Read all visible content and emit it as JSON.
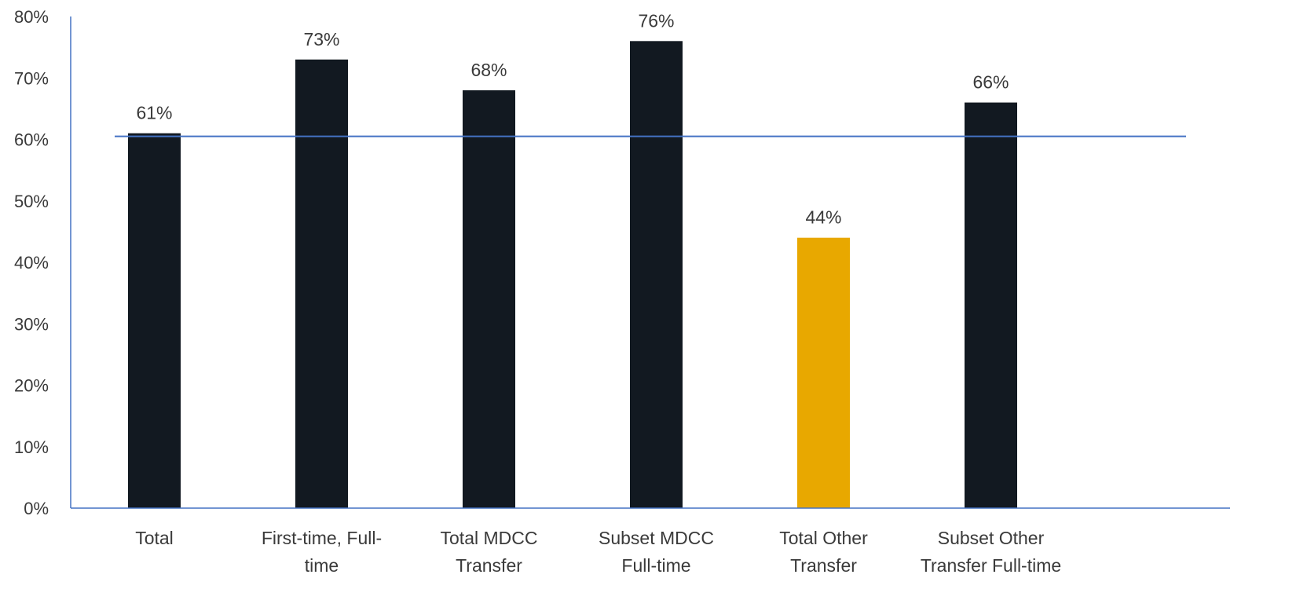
{
  "chart_data": {
    "type": "bar",
    "title": "",
    "xlabel": "",
    "ylabel": "",
    "categories": [
      [
        "Total"
      ],
      [
        "First-time, Full-",
        "time"
      ],
      [
        "Total MDCC",
        "Transfer"
      ],
      [
        "Subset MDCC",
        "Full-time"
      ],
      [
        "Total Other",
        "Transfer"
      ],
      [
        "Subset Other",
        "Transfer Full-time"
      ]
    ],
    "values": [
      61,
      73,
      68,
      76,
      44,
      66
    ],
    "data_labels": [
      "61%",
      "73%",
      "68%",
      "76%",
      "44%",
      "66%"
    ],
    "bar_colors": [
      "#121921",
      "#121921",
      "#121921",
      "#121921",
      "#E8A800",
      "#121921"
    ],
    "reference_line": {
      "value": 60.5,
      "color": "#4472C4"
    },
    "ylim": [
      0,
      80
    ],
    "yticks": [
      0,
      10,
      20,
      30,
      40,
      50,
      60,
      70,
      80
    ],
    "ytick_labels": [
      "0%",
      "10%",
      "20%",
      "30%",
      "40%",
      "50%",
      "60%",
      "70%",
      "80%"
    ],
    "axis_color": "#4472C4",
    "grid": false,
    "legend": "none"
  }
}
